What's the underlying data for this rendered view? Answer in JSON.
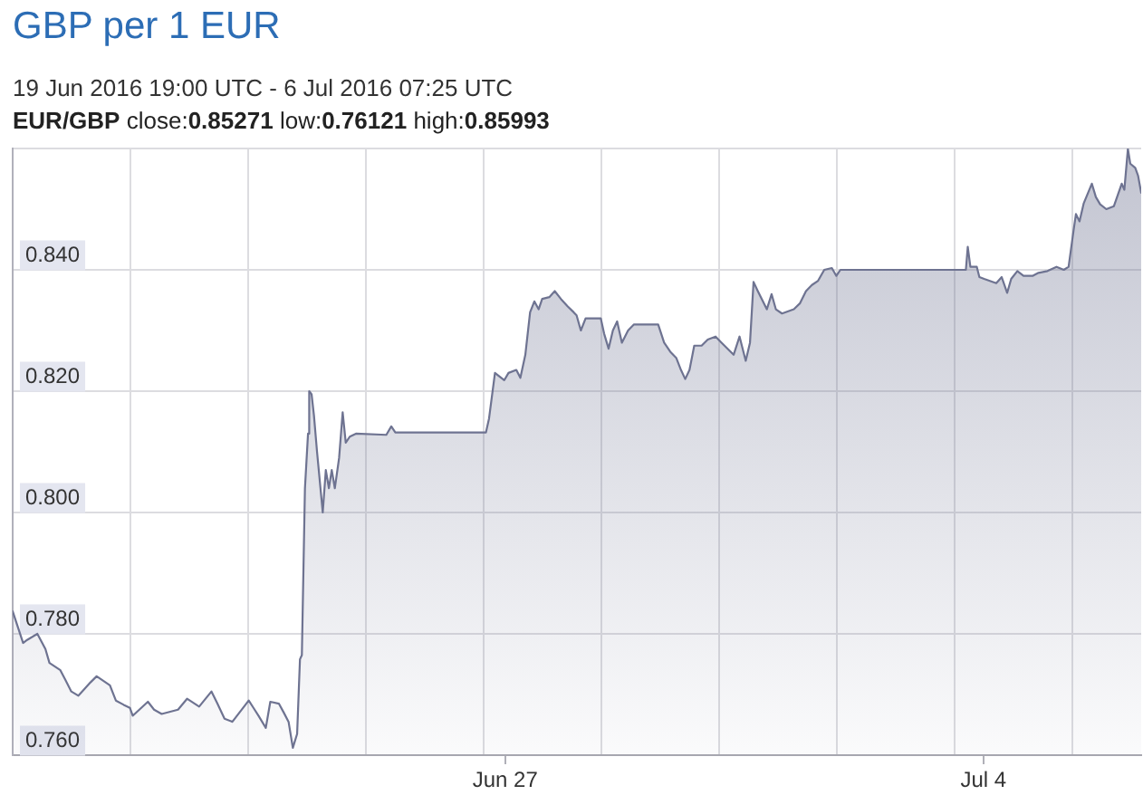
{
  "chart_data": {
    "type": "area",
    "title": "GBP per 1 EUR",
    "subtitle": "19 Jun 2016 19:00 UTC - 6 Jul 2016 07:25 UTC",
    "annotations": [
      "EUR/GBP close:0.85271 low:0.76121 high:0.85993"
    ],
    "x": [
      "2016-06-19T19:00",
      "2016-06-19T22:40",
      "2016-06-20T00:05",
      "2016-06-20T03:40",
      "2016-06-20T06:30",
      "2016-06-20T07:55",
      "2016-06-20T11:45",
      "2016-06-20T13:25",
      "2016-06-20T15:35",
      "2016-06-20T18:05",
      "2016-06-20T22:20",
      "2016-06-21T00:30",
      "2016-06-21T05:10",
      "2016-06-21T07:15",
      "2016-06-21T10:00",
      "2016-06-21T12:10",
      "2016-06-21T13:10",
      "2016-06-21T18:30",
      "2016-06-21T20:40",
      "2016-06-21T23:20",
      "2016-06-22T05:05",
      "2016-06-22T08:15",
      "2016-06-22T12:30",
      "2016-06-22T16:50",
      "2016-06-22T18:55",
      "2016-06-22T21:25",
      "2016-06-23T00:10",
      "2016-06-23T05:55",
      "2016-06-23T07:35",
      "2016-06-23T09:20",
      "2016-06-23T11:55",
      "2016-06-23T13:30",
      "2016-06-23T16:30",
      "2016-06-23T18:15",
      "2016-06-23T19:55",
      "2016-06-23T21:25",
      "2016-06-23T22:55",
      "2016-06-23T23:55",
      "2016-06-24T00:35",
      "2016-06-24T01:40",
      "2016-06-24T02:45",
      "2016-06-24T03:10",
      "2016-06-24T04:00",
      "2016-06-24T04:50",
      "2016-06-24T05:55",
      "2016-06-24T07:55",
      "2016-06-24T09:00",
      "2016-06-24T10:05",
      "2016-06-24T11:05",
      "2016-06-24T12:10",
      "2016-06-24T13:40",
      "2016-06-24T14:55",
      "2016-06-24T16:00",
      "2016-06-24T17:25",
      "2016-06-24T19:35",
      "2016-06-25T06:15",
      "2016-06-25T08:00",
      "2016-06-25T09:25",
      "2016-06-26T17:15",
      "2016-06-26T18:20",
      "2016-06-26T20:25",
      "2016-06-26T23:40",
      "2016-06-27T01:10",
      "2016-06-27T03:55",
      "2016-06-27T05:20",
      "2016-06-27T07:05",
      "2016-06-27T08:45",
      "2016-06-27T10:15",
      "2016-06-27T11:45",
      "2016-06-27T13:00",
      "2016-06-27T15:30",
      "2016-06-27T17:25",
      "2016-06-27T19:35",
      "2016-06-27T21:55",
      "2016-06-28T00:05",
      "2016-06-28T01:05",
      "2016-06-28T02:35",
      "2016-06-28T04:15",
      "2016-06-28T09:35",
      "2016-06-28T10:45",
      "2016-06-28T12:20",
      "2016-06-28T13:50",
      "2016-06-28T15:20",
      "2016-06-28T17:00",
      "2016-06-28T19:10",
      "2016-06-28T21:15",
      "2016-06-29T05:45",
      "2016-06-29T07:50",
      "2016-06-29T10:00",
      "2016-06-29T12:05",
      "2016-06-29T13:45",
      "2016-06-29T15:15",
      "2016-06-29T16:45",
      "2016-06-29T18:25",
      "2016-06-29T21:00",
      "2016-06-29T23:10",
      "2016-06-30T01:55",
      "2016-06-30T04:00",
      "2016-06-30T08:15",
      "2016-06-30T10:20",
      "2016-06-30T12:30",
      "2016-06-30T14:00",
      "2016-06-30T15:15",
      "2016-06-30T16:45",
      "2016-06-30T19:55",
      "2016-06-30T21:35",
      "2016-06-30T23:05",
      "2016-07-01T01:15",
      "2016-07-01T05:25",
      "2016-07-01T07:35",
      "2016-07-01T09:40",
      "2016-07-01T11:45",
      "2016-07-01T13:55",
      "2016-07-01T16:05",
      "2016-07-01T18:45",
      "2016-07-01T20:20",
      "2016-07-01T21:45",
      "2016-07-03T17:50",
      "2016-07-03T18:30",
      "2016-07-03T19:25",
      "2016-07-03T21:40",
      "2016-07-03T22:35",
      "2016-07-04T00:15",
      "2016-07-04T04:30",
      "2016-07-04T06:25",
      "2016-07-04T08:20",
      "2016-07-04T09:45",
      "2016-07-04T11:55",
      "2016-07-04T14:05",
      "2016-07-04T17:15",
      "2016-07-04T19:20",
      "2016-07-04T22:30",
      "2016-07-05T01:40",
      "2016-07-05T04:15",
      "2016-07-05T05:55",
      "2016-07-05T07:40",
      "2016-07-05T08:30",
      "2016-07-05T09:45",
      "2016-07-05T11:15",
      "2016-07-05T14:05",
      "2016-07-05T15:30",
      "2016-07-05T17:00",
      "2016-07-05T19:10",
      "2016-07-05T21:50",
      "2016-07-06T00:35",
      "2016-07-06T01:30",
      "2016-07-06T02:45",
      "2016-07-06T03:35",
      "2016-07-06T05:20",
      "2016-07-06T06:20",
      "2016-07-06T07:25"
    ],
    "series": [
      {
        "color": "#6e7391",
        "values": [
          0.7837,
          0.7785,
          0.779,
          0.78,
          0.7775,
          0.7752,
          0.774,
          0.7725,
          0.7705,
          0.7698,
          0.772,
          0.773,
          0.7715,
          0.769,
          0.7683,
          0.7678,
          0.7665,
          0.7688,
          0.7675,
          0.7668,
          0.7675,
          0.7693,
          0.768,
          0.7705,
          0.7685,
          0.766,
          0.7655,
          0.769,
          0.7678,
          0.7665,
          0.7645,
          0.7688,
          0.7685,
          0.767,
          0.7655,
          0.76121,
          0.7635,
          0.7758,
          0.7765,
          0.804,
          0.813,
          0.82,
          0.8195,
          0.816,
          0.81,
          0.8,
          0.807,
          0.804,
          0.807,
          0.804,
          0.809,
          0.8165,
          0.8115,
          0.8125,
          0.813,
          0.8128,
          0.8142,
          0.8132,
          0.8132,
          0.8155,
          0.823,
          0.8218,
          0.823,
          0.8235,
          0.8222,
          0.826,
          0.833,
          0.8348,
          0.8335,
          0.8352,
          0.8355,
          0.8365,
          0.8352,
          0.834,
          0.833,
          0.8325,
          0.83,
          0.832,
          0.832,
          0.8295,
          0.827,
          0.83,
          0.8315,
          0.828,
          0.83,
          0.831,
          0.831,
          0.828,
          0.8265,
          0.8255,
          0.8235,
          0.822,
          0.8235,
          0.8275,
          0.8275,
          0.8285,
          0.829,
          0.828,
          0.826,
          0.829,
          0.825,
          0.828,
          0.838,
          0.8365,
          0.8335,
          0.836,
          0.8335,
          0.8328,
          0.8335,
          0.8345,
          0.8365,
          0.8375,
          0.8382,
          0.84,
          0.8403,
          0.839,
          0.84,
          0.84,
          0.8438,
          0.8405,
          0.8405,
          0.8388,
          0.8385,
          0.8378,
          0.8388,
          0.8362,
          0.8385,
          0.8398,
          0.839,
          0.839,
          0.8395,
          0.8398,
          0.8405,
          0.84,
          0.8405,
          0.8465,
          0.8492,
          0.848,
          0.851,
          0.8542,
          0.852,
          0.8508,
          0.85,
          0.8505,
          0.8542,
          0.8532,
          0.85993,
          0.8575,
          0.8568,
          0.8555,
          0.85271
        ]
      }
    ],
    "xlim": [
      "2016-06-19T19:00",
      "2016-07-06T07:25"
    ],
    "xticks": [
      {
        "value": "2016-06-21T12:20",
        "label": null
      },
      {
        "value": "2016-06-23T05:45",
        "label": null
      },
      {
        "value": "2016-06-24T23:05",
        "label": null
      },
      {
        "value": "2016-06-26T16:25",
        "label": null
      },
      {
        "value": "2016-06-27",
        "label": "Jun 27"
      },
      {
        "value": "2016-06-28T09:45",
        "label": null
      },
      {
        "value": "2016-06-30T03:10",
        "label": null
      },
      {
        "value": "2016-07-01T20:30",
        "label": null
      },
      {
        "value": "2016-07-03T13:50",
        "label": null
      },
      {
        "value": "2016-07-04",
        "label": "Jul 4"
      },
      {
        "value": "2016-07-05T07:15",
        "label": null
      }
    ],
    "ylim": [
      0.76,
      0.86
    ],
    "yticks": [
      {
        "value": 0.76,
        "label": "0.760"
      },
      {
        "value": 0.78,
        "label": "0.780"
      },
      {
        "value": 0.8,
        "label": "0.800"
      },
      {
        "value": 0.82,
        "label": "0.820"
      },
      {
        "value": 0.84,
        "label": "0.840"
      },
      {
        "value": 0.86,
        "label": null
      }
    ],
    "grid": true
  }
}
